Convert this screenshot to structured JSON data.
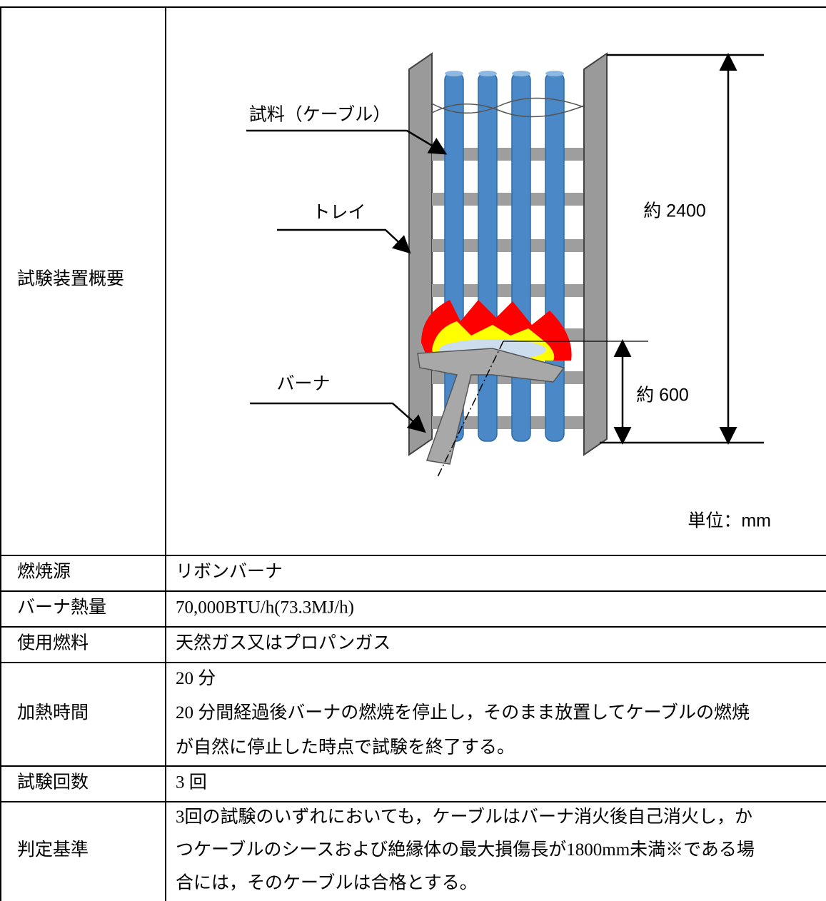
{
  "diagram": {
    "labels": {
      "sample": "試料（ケーブル）",
      "tray": "トレイ",
      "burner": "バーナ",
      "height_total": "約 2400",
      "height_burner": "約 600",
      "unit": "単位：mm"
    }
  },
  "table": {
    "rows": [
      [
        "試験装置概要"
      ],
      [
        "燃焼源",
        "リボンバーナ"
      ],
      [
        "バーナ熱量",
        "70,000BTU/h(73.3MJ/h)"
      ],
      [
        "使用燃料",
        "天然ガス又はプロパンガス"
      ],
      [
        "加熱時間",
        [
          "20 分",
          "20 分間経過後バーナの燃焼を停止し，そのまま放置してケーブルの燃焼",
          "が自然に停止した時点で試験を終了する。"
        ]
      ],
      [
        "試験回数",
        "3 回"
      ],
      [
        "判定基準",
        [
          "3回の試験のいずれにおいても，ケーブルはバーナ消火後自己消火し，か",
          "つケーブルのシースおよび絶縁体の最大損傷長が1800mm未満※である場",
          "合には，そのケーブルは合格とする。"
        ]
      ]
    ]
  }
}
